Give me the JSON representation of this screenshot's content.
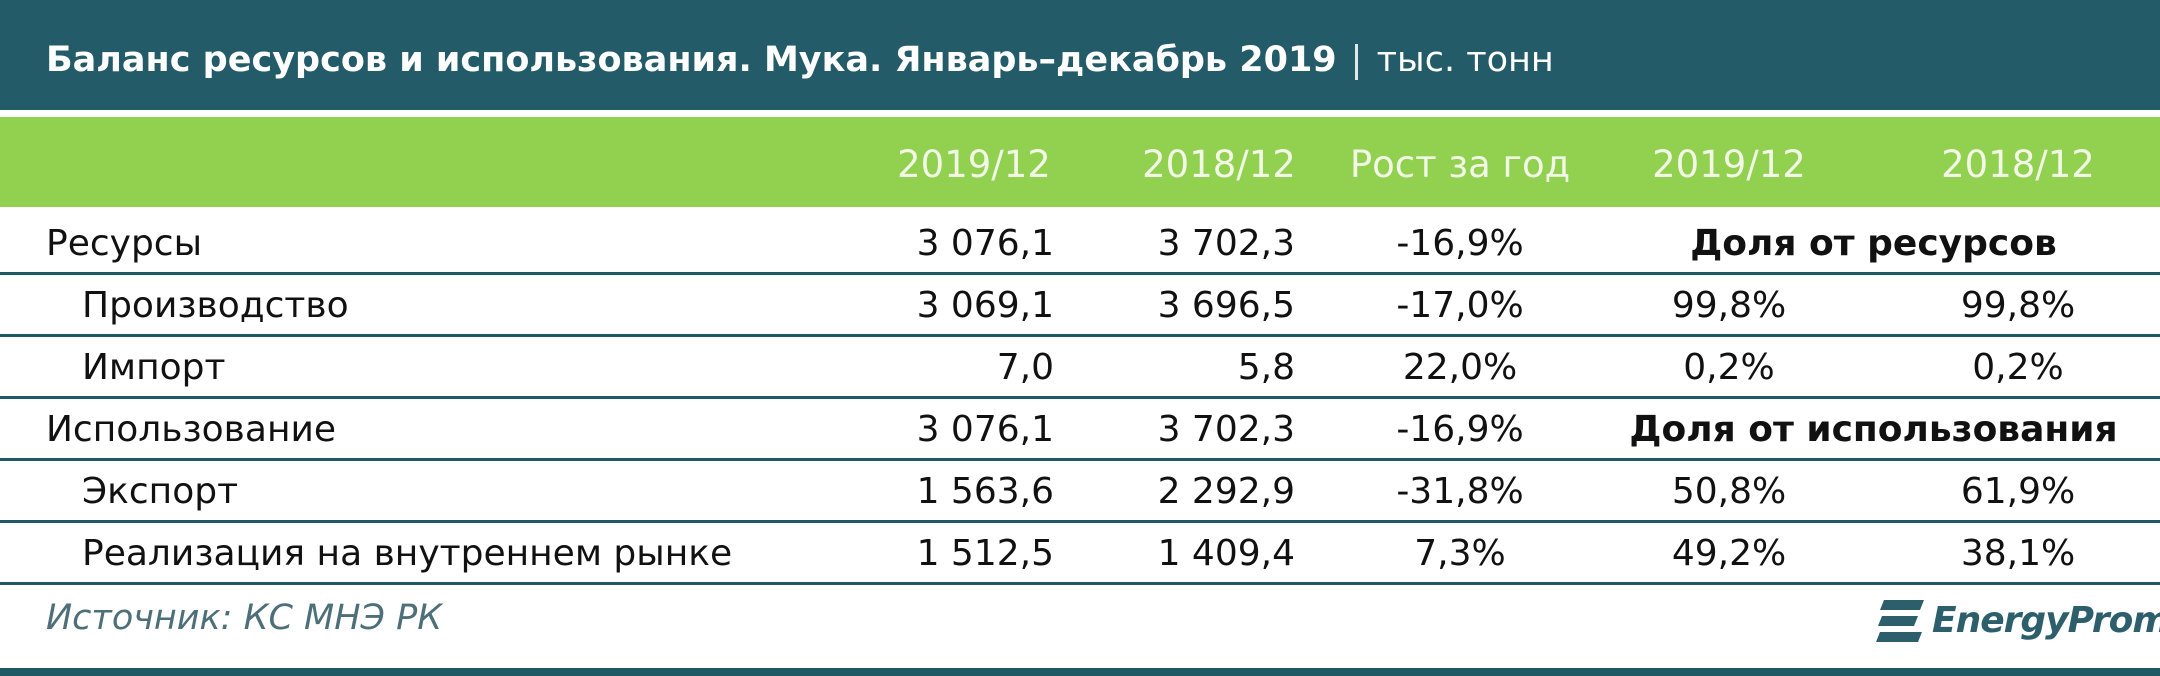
{
  "header": {
    "title": "Баланс ресурсов и использования. Мука. Январь–декабрь 2019",
    "unit": "тыс. тонн"
  },
  "table": {
    "columns": [
      "2019/12",
      "2018/12",
      "Рост за год",
      "2019/12",
      "2018/12"
    ],
    "sections": [
      {
        "label": "Ресурсы",
        "cells": [
          "3 076,1",
          "3 702,3",
          "-16,9%"
        ],
        "share_label": "Доля от ресурсов",
        "items": [
          {
            "label": "Производство",
            "cells": [
              "3 069,1",
              "3 696,5",
              "-17,0%",
              "99,8%",
              "99,8%"
            ]
          },
          {
            "label": "Импорт",
            "cells": [
              "7,0",
              "5,8",
              "22,0%",
              "0,2%",
              "0,2%"
            ]
          }
        ]
      },
      {
        "label": "Использование",
        "cells": [
          "3 076,1",
          "3 702,3",
          "-16,9%"
        ],
        "share_label": "Доля от использования",
        "items": [
          {
            "label": "Экспорт",
            "cells": [
              "1 563,6",
              "2 292,9",
              "-31,8%",
              "50,8%",
              "61,9%"
            ]
          },
          {
            "label": "Реализация на внутреннем рынке",
            "cells": [
              "1 512,5",
              "1 409,4",
              "7,3%",
              "49,2%",
              "38,1%"
            ]
          }
        ]
      }
    ]
  },
  "footer": {
    "source": "Источник: КС МНЭ РК",
    "logo": "EnergyProm"
  }
}
